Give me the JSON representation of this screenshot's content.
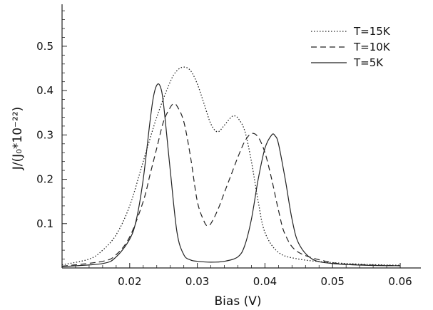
{
  "chart_data": {
    "type": "line",
    "xlabel": "Bias (V)",
    "ylabel": "J/(J₀*10⁻²²)",
    "xlim": [
      0.01,
      0.062
    ],
    "ylim": [
      0,
      0.585
    ],
    "x_ticks": [
      0.02,
      0.03,
      0.04,
      0.05,
      0.06
    ],
    "x_tick_labels": [
      "0.02",
      "0.03",
      "0.04",
      "0.05",
      "0.06"
    ],
    "y_ticks": [
      0.1,
      0.2,
      0.3,
      0.4,
      0.5
    ],
    "y_tick_labels": [
      "0.1",
      "0.2",
      "0.3",
      "0.4",
      "0.5"
    ],
    "grid": false,
    "legend_position": "top-right",
    "series": [
      {
        "name": "T=15K",
        "style": "dotted",
        "x": [
          0.01,
          0.014,
          0.016,
          0.018,
          0.02,
          0.022,
          0.024,
          0.026,
          0.027,
          0.028,
          0.029,
          0.03,
          0.031,
          0.032,
          0.033,
          0.034,
          0.035,
          0.0355,
          0.036,
          0.037,
          0.038,
          0.039,
          0.04,
          0.042,
          0.045,
          0.05,
          0.055,
          0.06
        ],
        "y": [
          0.007,
          0.02,
          0.04,
          0.075,
          0.14,
          0.24,
          0.34,
          0.42,
          0.445,
          0.453,
          0.445,
          0.415,
          0.37,
          0.325,
          0.307,
          0.322,
          0.34,
          0.343,
          0.338,
          0.31,
          0.24,
          0.15,
          0.08,
          0.035,
          0.02,
          0.012,
          0.008,
          0.006
        ]
      },
      {
        "name": "T=10K",
        "style": "dashed",
        "x": [
          0.01,
          0.016,
          0.018,
          0.02,
          0.022,
          0.023,
          0.024,
          0.025,
          0.026,
          0.0265,
          0.027,
          0.028,
          0.029,
          0.03,
          0.031,
          0.0315,
          0.032,
          0.033,
          0.034,
          0.035,
          0.036,
          0.037,
          0.038,
          0.039,
          0.04,
          0.041,
          0.042,
          0.043,
          0.045,
          0.05,
          0.055,
          0.06
        ],
        "y": [
          0.004,
          0.015,
          0.03,
          0.07,
          0.15,
          0.21,
          0.27,
          0.33,
          0.362,
          0.37,
          0.365,
          0.33,
          0.25,
          0.15,
          0.105,
          0.095,
          0.1,
          0.13,
          0.17,
          0.21,
          0.25,
          0.285,
          0.303,
          0.295,
          0.26,
          0.2,
          0.13,
          0.075,
          0.035,
          0.012,
          0.007,
          0.005
        ]
      },
      {
        "name": "T=5K",
        "style": "solid",
        "x": [
          0.01,
          0.016,
          0.018,
          0.02,
          0.021,
          0.022,
          0.023,
          0.0235,
          0.024,
          0.0245,
          0.025,
          0.026,
          0.027,
          0.028,
          0.029,
          0.03,
          0.032,
          0.034,
          0.036,
          0.037,
          0.038,
          0.039,
          0.04,
          0.041,
          0.0415,
          0.042,
          0.043,
          0.044,
          0.045,
          0.047,
          0.05,
          0.055,
          0.06
        ],
        "y": [
          0.003,
          0.01,
          0.025,
          0.065,
          0.11,
          0.2,
          0.33,
          0.385,
          0.412,
          0.41,
          0.37,
          0.22,
          0.08,
          0.03,
          0.018,
          0.015,
          0.013,
          0.015,
          0.025,
          0.05,
          0.11,
          0.2,
          0.27,
          0.3,
          0.298,
          0.28,
          0.2,
          0.11,
          0.055,
          0.02,
          0.01,
          0.006,
          0.005
        ]
      }
    ]
  }
}
